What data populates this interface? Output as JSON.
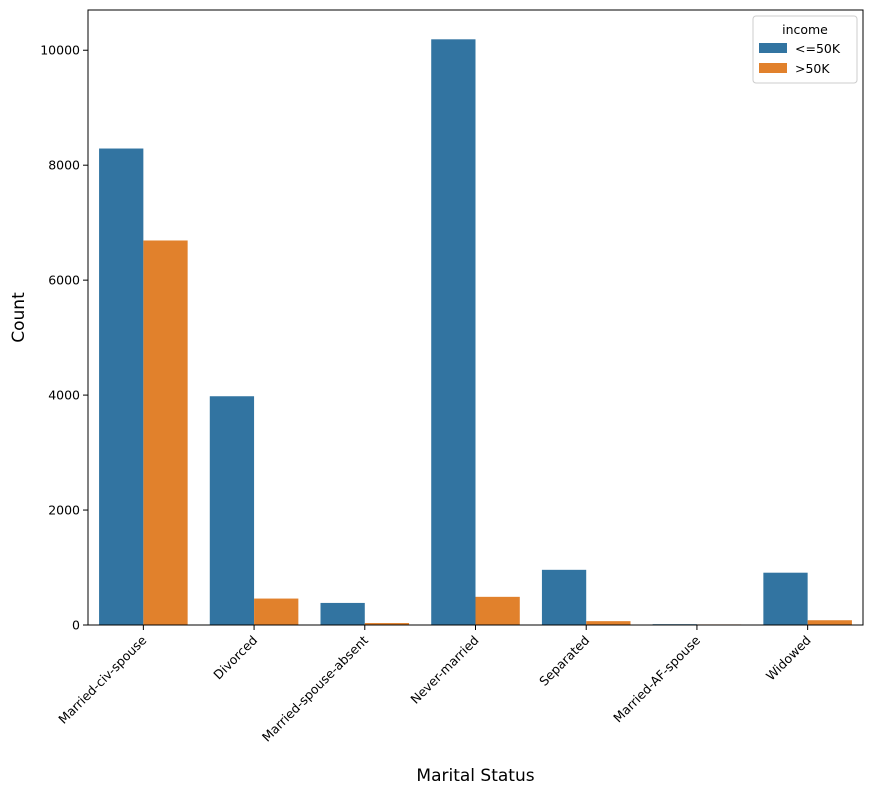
{
  "chart_data": {
    "type": "bar",
    "xlabel": "Marital Status",
    "ylabel": "Count",
    "categories": [
      "Married-civ-spouse",
      "Divorced",
      "Married-spouse-absent",
      "Never-married",
      "Separated",
      "Married-AF-spouse",
      "Widowed"
    ],
    "series": [
      {
        "name": " <=50K",
        "color": "#3274a1",
        "values": [
          8290,
          3980,
          384,
          10190,
          960,
          14,
          910
        ]
      },
      {
        "name": " >50K",
        "color": "#e1812c",
        "values": [
          6690,
          460,
          34,
          490,
          67,
          10,
          83
        ]
      }
    ],
    "ylim": [
      0,
      10700
    ],
    "yticks": [
      0,
      2000,
      4000,
      6000,
      8000,
      10000
    ],
    "legend": {
      "title": "income",
      "placement": "top-right"
    },
    "grid": false
  }
}
